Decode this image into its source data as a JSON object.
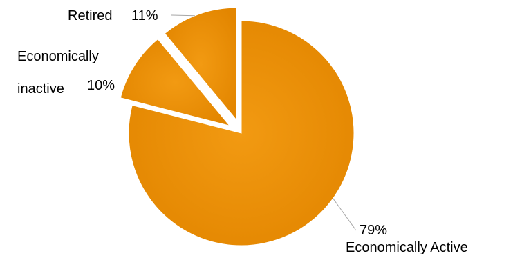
{
  "chart_data": {
    "type": "pie",
    "slices": [
      {
        "label": "Economically Active",
        "value": 79,
        "value_label": "79%",
        "color": "#EA8B00",
        "exploded": false
      },
      {
        "label_lines": [
          "Economically",
          "inactive"
        ],
        "value": 10,
        "value_label": "10%",
        "color": "#EA8B00",
        "exploded": true
      },
      {
        "label": "Retired",
        "value": 11,
        "value_label": "11%",
        "color": "#EA8B00",
        "exploded": true
      }
    ],
    "legend": "none",
    "leader_line_color": "#A6A6A6"
  }
}
